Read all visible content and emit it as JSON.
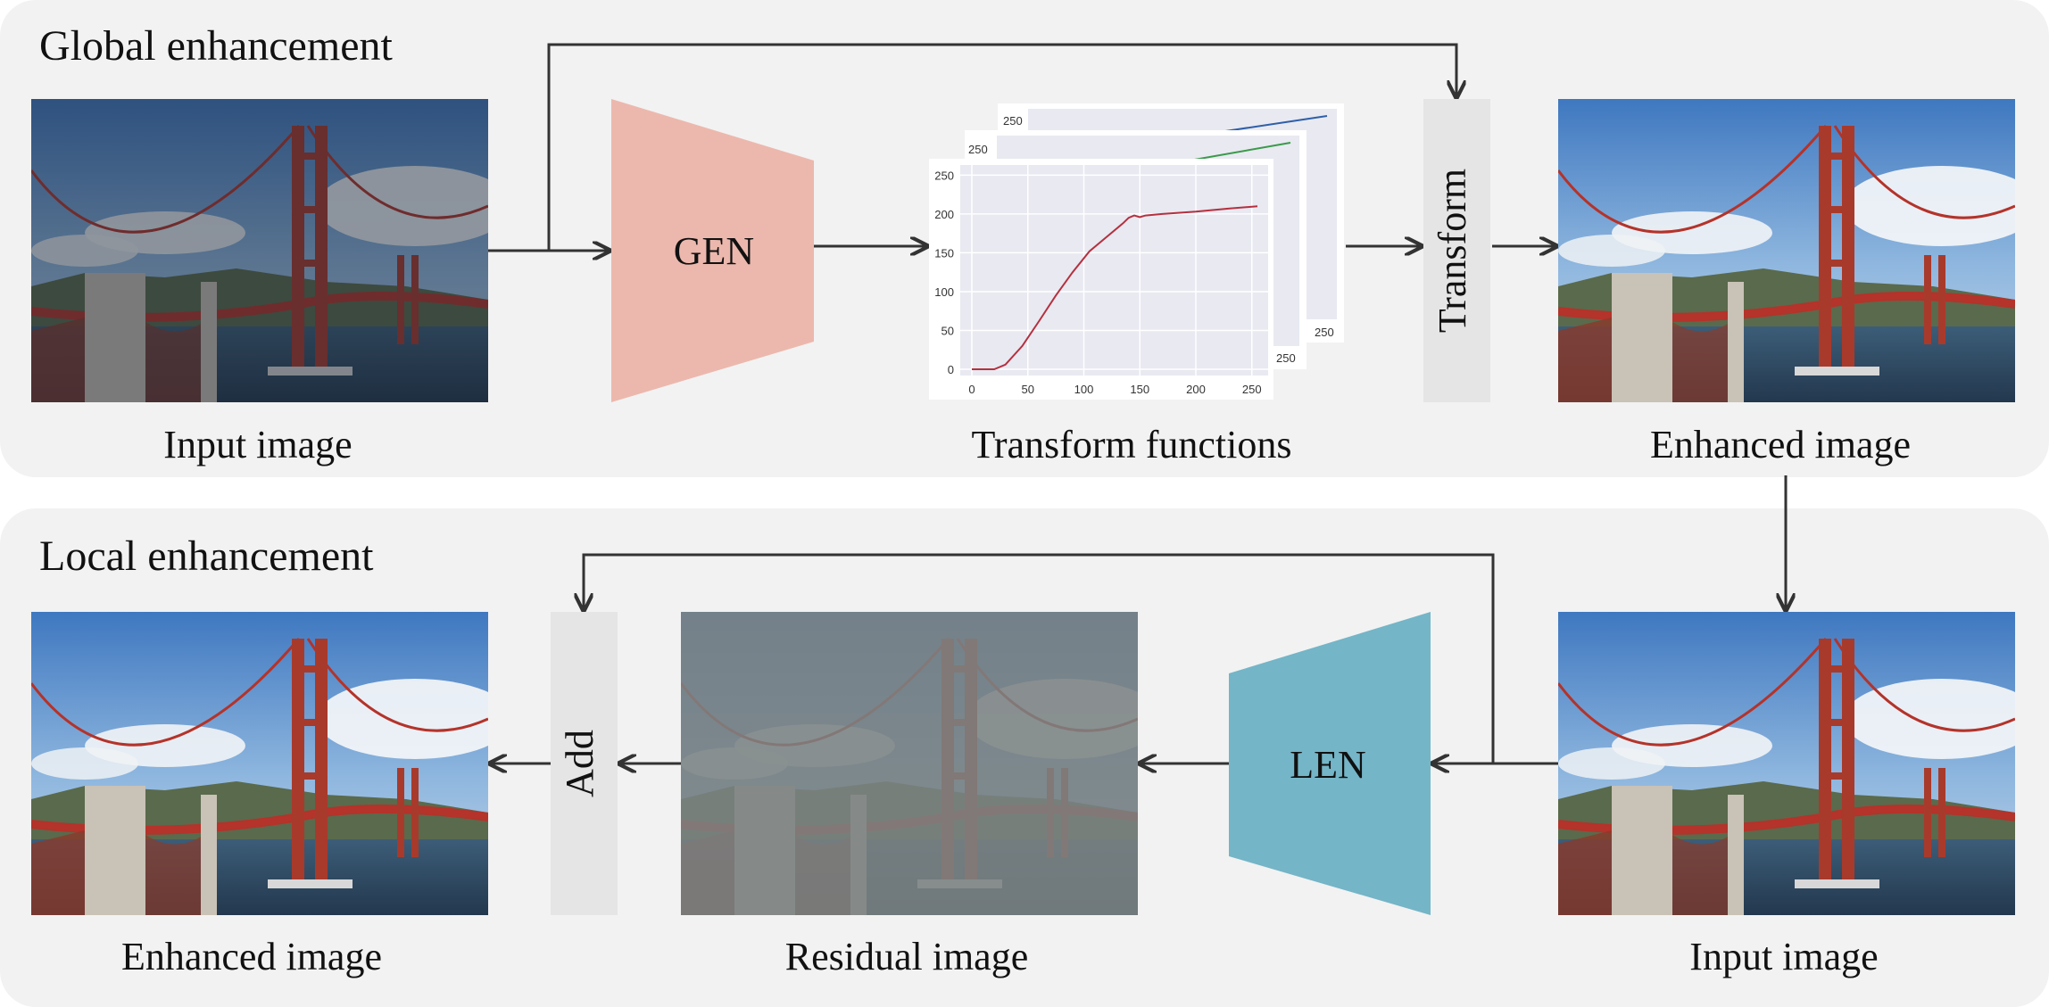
{
  "global_panel": {
    "title": "Global enhancement",
    "input_caption": "Input image",
    "network_label": "GEN",
    "functions_caption": "Transform functions",
    "transform_label": "Transform",
    "output_caption": "Enhanced image"
  },
  "local_panel": {
    "title": "Local enhancement",
    "input_caption": "Input image",
    "network_label": "LEN",
    "residual_caption": "Residual image",
    "add_label": "Add",
    "output_caption": "Enhanced image"
  },
  "plot": {
    "front_x_ticks": [
      "0",
      "50",
      "100",
      "150",
      "200",
      "250"
    ],
    "front_y_ticks": [
      "0",
      "50",
      "100",
      "150",
      "200",
      "250"
    ],
    "back_tick": "250",
    "curve_colors": [
      "#b5303f",
      "#3a9a4a",
      "#2e5fa8"
    ]
  },
  "colors": {
    "panel_bg": "#f2f2f2",
    "gen_fill": "#ecb8ad",
    "len_fill": "#74b5c7",
    "op_box": "#e5e5e5",
    "arrow": "#333333"
  }
}
